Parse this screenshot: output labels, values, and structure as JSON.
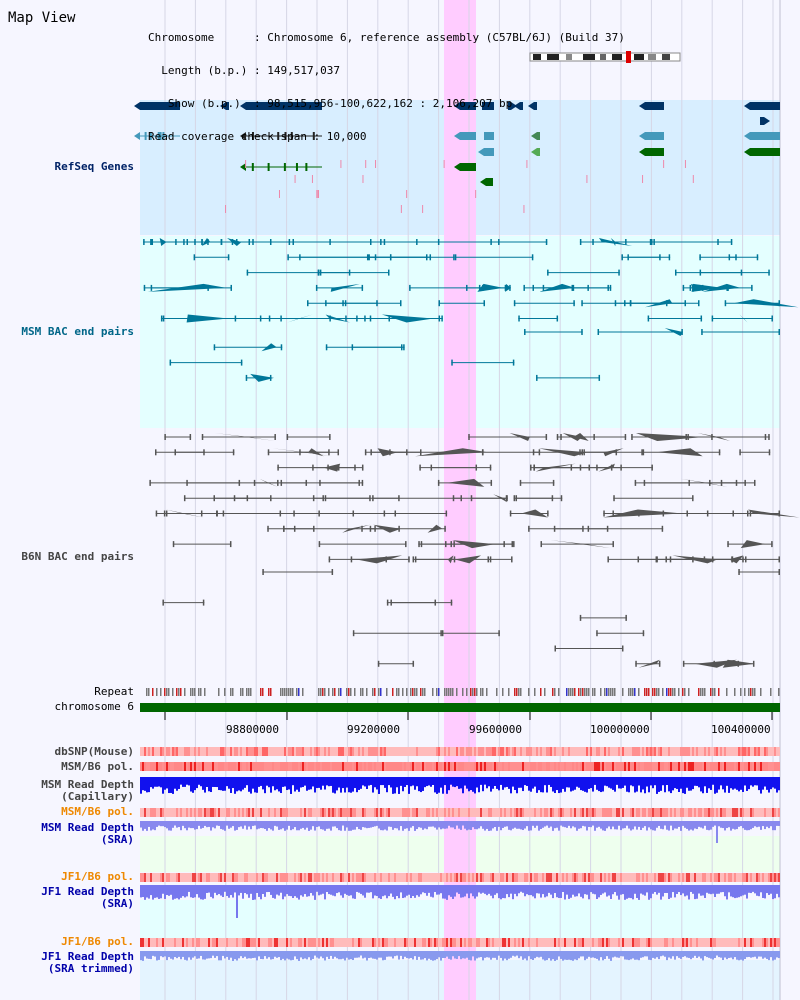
{
  "view": {
    "title": "Map View",
    "info_lines": [
      "Chromosome      : Chromosome 6, reference assembly (C57BL/6J) (Build 37)",
      "  Length (b.p.) : 149,517,037",
      "   Show (b.p.)  : 98,515,956-100,622,162 : 2,106,207 bp",
      "Read coverage check span : 10,000"
    ]
  },
  "tracks": {
    "refseq": {
      "label": "RefSeq Genes",
      "color": "#002266"
    },
    "msm_bac": {
      "label": "MSM BAC end pairs",
      "color": "#006688"
    },
    "b6n_bac": {
      "label": "B6N BAC end pairs",
      "color": "#444444"
    },
    "repeat": {
      "label": "Repeat"
    },
    "chromosome": {
      "label": "chromosome 6"
    },
    "dbsnp": {
      "label": "dbSNP(Mouse)",
      "color": "#444444"
    },
    "msm_b6_pol_1": {
      "label": "MSM/B6 pol.",
      "color": "#444444"
    },
    "msm_depth_cap": {
      "label": "MSM Read Depth\n(Capillary)",
      "color": "#444444"
    },
    "msm_b6_pol_2": {
      "label": "MSM/B6 pol.",
      "color": "#ee8800"
    },
    "msm_depth_sra": {
      "label": "MSM Read Depth\n(SRA)",
      "color": "#0000aa"
    },
    "jf1_b6_pol_1": {
      "label": "JF1/B6 pol.",
      "color": "#ee8800"
    },
    "jf1_depth_sra": {
      "label": "JF1 Read Depth\n(SRA)",
      "color": "#0000aa"
    },
    "jf1_b6_pol_2": {
      "label": "JF1/B6 pol.",
      "color": "#ee8800"
    },
    "jf1_depth_trim": {
      "label": "JF1 Read Depth\n(SRA trimmed)",
      "color": "#0000aa"
    }
  },
  "axis": {
    "ticks": [
      "98800000",
      "99200000",
      "99600000",
      "100000000",
      "100400000"
    ]
  },
  "highlight": {
    "color": "#ffccff"
  }
}
